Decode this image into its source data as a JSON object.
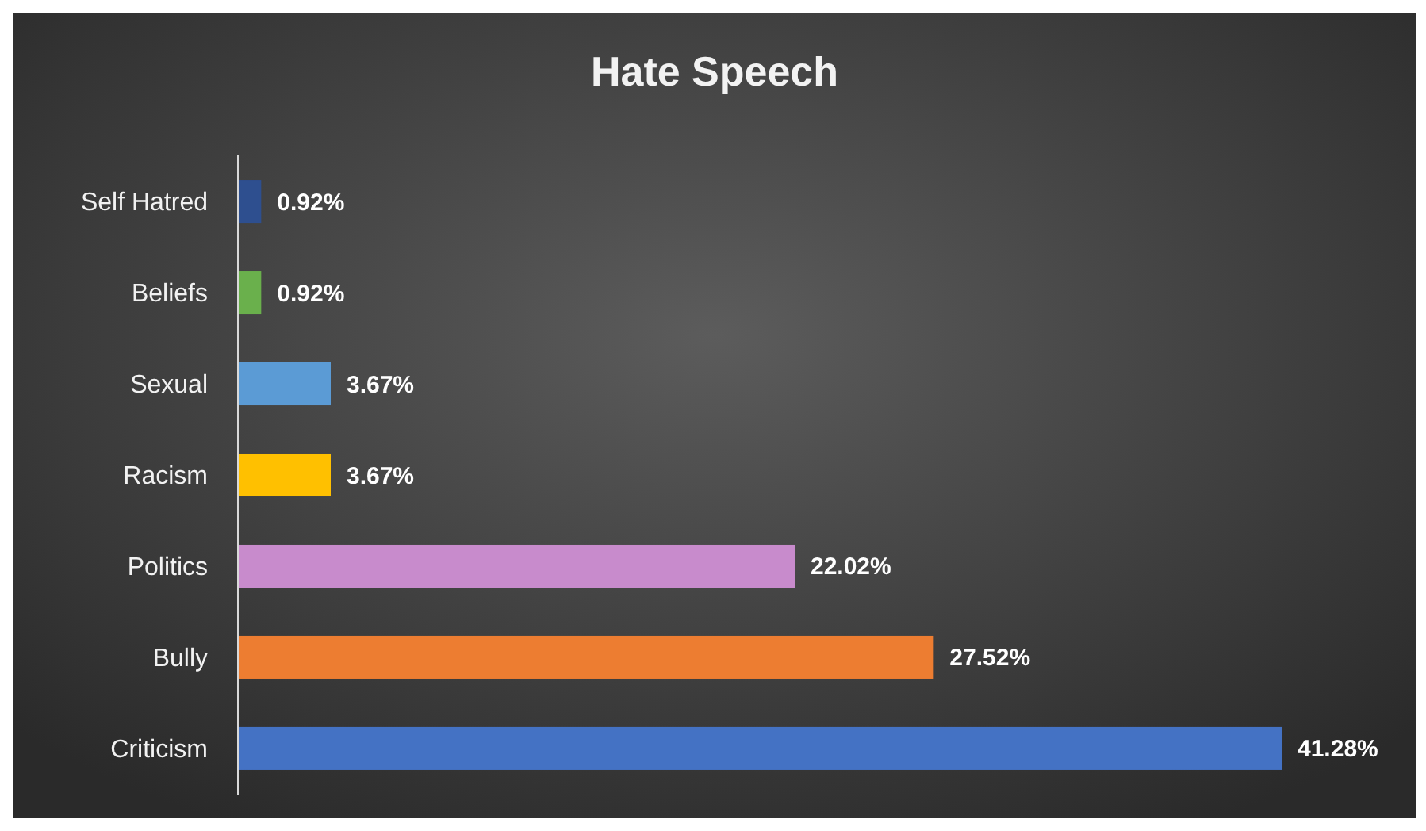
{
  "chart_data": {
    "type": "bar",
    "orientation": "horizontal",
    "title": "Hate Speech",
    "categories": [
      "Self Hatred",
      "Beliefs",
      "Sexual",
      "Racism",
      "Politics",
      "Bully",
      "Criticism"
    ],
    "values": [
      0.92,
      0.92,
      3.67,
      3.67,
      22.02,
      27.52,
      41.28
    ],
    "value_labels": [
      "0.92%",
      "0.92%",
      "3.67%",
      "3.67%",
      "22.02%",
      "27.52%",
      "41.28%"
    ],
    "colors": [
      "#2e4f8f",
      "#6ab04c",
      "#5b9bd5",
      "#ffc000",
      "#c88bcc",
      "#ed7d31",
      "#4472c4"
    ],
    "grid": false
  }
}
